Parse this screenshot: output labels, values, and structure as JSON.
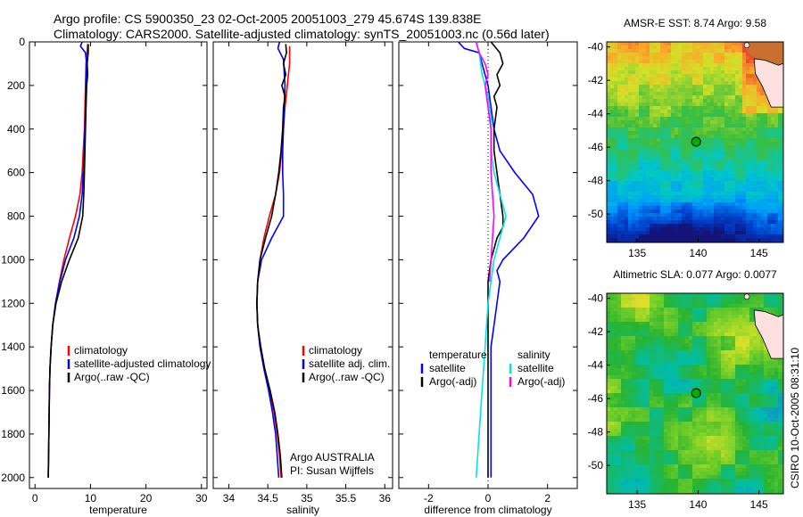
{
  "header": {
    "title_line1": "Argo profile: CS 5900350_23 02-Oct-2005 20051003_279 45.674S 139.838E",
    "title_line2": "Climatology: CARS2000. Satellite-adjusted climatology: synTS_20051003.nc (0.56d later)"
  },
  "stamp": "CSIRO 10-Oct-2005 08:31:10",
  "colors": {
    "climatology": "#ff0000",
    "satellite": "#0000ff",
    "argo": "#000000",
    "satellite_diff_salinity": "#00e5e5",
    "argo_adj_salinity": "#ff00ff",
    "marker_fill": "#00b000"
  },
  "chart_data": [
    {
      "type": "line",
      "id": "temperature",
      "xlabel": "temperature",
      "ylabel": "",
      "xlim": [
        -1,
        31
      ],
      "ylim": [
        2050,
        0
      ],
      "xticks": [
        0,
        10,
        20,
        30
      ],
      "yticks": [
        0,
        200,
        400,
        600,
        800,
        1000,
        1200,
        1400,
        1600,
        1800,
        2000
      ],
      "legend": {
        "placement": "lower-right",
        "entries": [
          "climatology",
          "satellite-adjusted climatology",
          "Argo(..raw -QC)"
        ]
      },
      "series": [
        {
          "name": "climatology",
          "color": "climatology",
          "points": [
            [
              9.5,
              10
            ],
            [
              9.2,
              100
            ],
            [
              9.1,
              200
            ],
            [
              9.0,
              300
            ],
            [
              8.9,
              400
            ],
            [
              8.7,
              500
            ],
            [
              8.5,
              600
            ],
            [
              8.1,
              700
            ],
            [
              7.3,
              800
            ],
            [
              6.2,
              900
            ],
            [
              5.2,
              1000
            ],
            [
              4.4,
              1100
            ],
            [
              3.7,
              1200
            ],
            [
              3.2,
              1300
            ],
            [
              2.9,
              1400
            ],
            [
              2.7,
              1500
            ],
            [
              2.6,
              1600
            ],
            [
              2.5,
              1800
            ],
            [
              2.4,
              2000
            ]
          ]
        },
        {
          "name": "satellite-adjusted climatology",
          "color": "satellite",
          "points": [
            [
              8.5,
              0
            ],
            [
              8.2,
              20
            ],
            [
              9.1,
              50
            ],
            [
              9.3,
              100
            ],
            [
              9.2,
              200
            ],
            [
              9.1,
              300
            ],
            [
              9.0,
              400
            ],
            [
              8.9,
              500
            ],
            [
              8.7,
              600
            ],
            [
              8.5,
              700
            ],
            [
              8.0,
              800
            ],
            [
              7.0,
              900
            ],
            [
              5.5,
              1000
            ],
            [
              4.5,
              1100
            ],
            [
              3.7,
              1200
            ],
            [
              3.2,
              1300
            ],
            [
              2.9,
              1400
            ],
            [
              2.7,
              1500
            ],
            [
              2.6,
              1600
            ],
            [
              2.5,
              1800
            ],
            [
              2.4,
              2000
            ]
          ]
        },
        {
          "name": "Argo(..raw -QC)",
          "color": "argo",
          "points": [
            [
              9.6,
              10
            ],
            [
              9.6,
              50
            ],
            [
              9.4,
              100
            ],
            [
              9.5,
              150
            ],
            [
              9.3,
              200
            ],
            [
              9.2,
              300
            ],
            [
              9.1,
              400
            ],
            [
              9.0,
              500
            ],
            [
              8.9,
              600
            ],
            [
              8.8,
              700
            ],
            [
              8.6,
              800
            ],
            [
              7.8,
              900
            ],
            [
              6.2,
              1000
            ],
            [
              4.8,
              1100
            ],
            [
              3.8,
              1200
            ],
            [
              3.2,
              1300
            ],
            [
              2.9,
              1400
            ],
            [
              2.7,
              1500
            ],
            [
              2.6,
              1600
            ],
            [
              2.5,
              1800
            ],
            [
              2.4,
              2000
            ]
          ]
        }
      ]
    },
    {
      "type": "line",
      "id": "salinity",
      "xlabel": "salinity",
      "ylabel": "",
      "xlim": [
        33.8,
        36.1
      ],
      "ylim": [
        2050,
        0
      ],
      "xticks": [
        34,
        34.5,
        35,
        35.5,
        36
      ],
      "yticks": [
        0,
        200,
        400,
        600,
        800,
        1000,
        1200,
        1400,
        1600,
        1800,
        2000
      ],
      "legend": {
        "placement": "lower-right",
        "entries": [
          "climatology",
          "satellite adj. clim.",
          "Argo(..raw -QC)"
        ]
      },
      "annotation": [
        "Argo AUSTRALIA",
        "PI: Susan Wijffels"
      ],
      "series": [
        {
          "name": "climatology",
          "color": "climatology",
          "points": [
            [
              34.78,
              20
            ],
            [
              34.78,
              100
            ],
            [
              34.75,
              200
            ],
            [
              34.72,
              300
            ],
            [
              34.7,
              400
            ],
            [
              34.68,
              500
            ],
            [
              34.65,
              600
            ],
            [
              34.6,
              700
            ],
            [
              34.52,
              800
            ],
            [
              34.45,
              900
            ],
            [
              34.4,
              1000
            ],
            [
              34.37,
              1100
            ],
            [
              34.36,
              1200
            ],
            [
              34.37,
              1300
            ],
            [
              34.4,
              1400
            ],
            [
              34.45,
              1500
            ],
            [
              34.52,
              1600
            ],
            [
              34.58,
              1700
            ],
            [
              34.62,
              1800
            ],
            [
              34.65,
              1900
            ],
            [
              34.67,
              2000
            ]
          ]
        },
        {
          "name": "satellite adj. clim.",
          "color": "satellite",
          "points": [
            [
              34.65,
              0
            ],
            [
              34.63,
              30
            ],
            [
              34.7,
              80
            ],
            [
              34.72,
              200
            ],
            [
              34.71,
              300
            ],
            [
              34.7,
              400
            ],
            [
              34.69,
              500
            ],
            [
              34.69,
              600
            ],
            [
              34.7,
              700
            ],
            [
              34.7,
              800
            ],
            [
              34.55,
              900
            ],
            [
              34.42,
              1000
            ],
            [
              34.37,
              1100
            ],
            [
              34.36,
              1200
            ],
            [
              34.37,
              1300
            ],
            [
              34.4,
              1400
            ],
            [
              34.45,
              1500
            ],
            [
              34.51,
              1600
            ],
            [
              34.56,
              1700
            ],
            [
              34.6,
              1800
            ],
            [
              34.62,
              1900
            ],
            [
              34.64,
              2000
            ]
          ]
        },
        {
          "name": "Argo(..raw -QC)",
          "color": "argo",
          "points": [
            [
              34.73,
              10
            ],
            [
              34.74,
              50
            ],
            [
              34.7,
              100
            ],
            [
              34.73,
              150
            ],
            [
              34.68,
              200
            ],
            [
              34.72,
              250
            ],
            [
              34.7,
              300
            ],
            [
              34.69,
              400
            ],
            [
              34.67,
              500
            ],
            [
              34.64,
              600
            ],
            [
              34.6,
              700
            ],
            [
              34.55,
              800
            ],
            [
              34.47,
              900
            ],
            [
              34.4,
              1000
            ],
            [
              34.37,
              1100
            ],
            [
              34.36,
              1200
            ],
            [
              34.37,
              1300
            ],
            [
              34.41,
              1400
            ],
            [
              34.46,
              1500
            ],
            [
              34.53,
              1600
            ],
            [
              34.59,
              1700
            ],
            [
              34.63,
              1800
            ],
            [
              34.66,
              1900
            ],
            [
              34.68,
              2000
            ]
          ]
        }
      ]
    },
    {
      "type": "line",
      "id": "difference",
      "xlabel": "difference from climatology",
      "ylabel": "",
      "xlim": [
        -3,
        3
      ],
      "ylim": [
        2050,
        0
      ],
      "xticks": [
        -2,
        0,
        2
      ],
      "yticks": [
        0,
        200,
        400,
        600,
        800,
        1000,
        1200,
        1400,
        1600,
        1800,
        2000
      ],
      "legend": {
        "placement": "lower",
        "columns": [
          {
            "heading": "temperature",
            "entries": [
              "satellite",
              "Argo(-adj)"
            ]
          },
          {
            "heading": "salinity",
            "entries": [
              "satellite",
              "Argo(-adj)"
            ]
          }
        ]
      },
      "series": [
        {
          "name": "satellite",
          "group": "temperature",
          "color": "satellite",
          "points": [
            [
              -1.0,
              0
            ],
            [
              -0.8,
              30
            ],
            [
              -0.3,
              50
            ],
            [
              -0.2,
              100
            ],
            [
              0.0,
              200
            ],
            [
              0.1,
              300
            ],
            [
              0.2,
              400
            ],
            [
              0.4,
              500
            ],
            [
              0.9,
              600
            ],
            [
              1.5,
              700
            ],
            [
              1.7,
              800
            ],
            [
              1.2,
              900
            ],
            [
              0.5,
              1000
            ],
            [
              0.3,
              1050
            ],
            [
              0.4,
              1100
            ],
            [
              0.3,
              1200
            ],
            [
              0.2,
              1300
            ],
            [
              0.1,
              1400
            ],
            [
              0.1,
              1600
            ],
            [
              0.1,
              2000
            ]
          ]
        },
        {
          "name": "Argo(-adj)",
          "group": "temperature",
          "color": "argo",
          "points": [
            [
              0.1,
              0
            ],
            [
              0.4,
              50
            ],
            [
              0.5,
              100
            ],
            [
              0.3,
              150
            ],
            [
              0.4,
              200
            ],
            [
              0.2,
              250
            ],
            [
              0.3,
              300
            ],
            [
              0.2,
              400
            ],
            [
              0.2,
              500
            ],
            [
              0.3,
              600
            ],
            [
              0.4,
              700
            ],
            [
              0.5,
              800
            ],
            [
              0.5,
              850
            ],
            [
              0.3,
              900
            ],
            [
              0.2,
              950
            ],
            [
              0.1,
              1000
            ],
            [
              0.0,
              1100
            ],
            [
              0.0,
              1300
            ],
            [
              0.0,
              1500
            ],
            [
              0.0,
              2000
            ]
          ]
        },
        {
          "name": "satellite",
          "group": "salinity",
          "color": "satellite_diff_salinity",
          "points": [
            [
              -0.4,
              0
            ],
            [
              -0.3,
              50
            ],
            [
              -0.2,
              150
            ],
            [
              0.0,
              250
            ],
            [
              0.1,
              350
            ],
            [
              0.1,
              500
            ],
            [
              0.2,
              600
            ],
            [
              0.4,
              700
            ],
            [
              0.6,
              800
            ],
            [
              0.4,
              900
            ],
            [
              0.2,
              1000
            ],
            [
              0.1,
              1100
            ],
            [
              0.0,
              1200
            ],
            [
              -0.1,
              1400
            ],
            [
              -0.2,
              1600
            ],
            [
              -0.3,
              1800
            ],
            [
              -0.4,
              2000
            ]
          ]
        },
        {
          "name": "Argo(-adj)",
          "group": "salinity",
          "color": "argo_adj_salinity",
          "points": [
            [
              -0.4,
              0
            ],
            [
              -0.3,
              50
            ],
            [
              -0.1,
              100
            ],
            [
              0.0,
              150
            ],
            [
              -0.1,
              200
            ],
            [
              0.0,
              300
            ],
            [
              0.1,
              400
            ],
            [
              0.1,
              500
            ],
            [
              0.1,
              600
            ],
            [
              0.15,
              700
            ],
            [
              0.2,
              800
            ],
            [
              0.15,
              900
            ],
            [
              0.1,
              1000
            ],
            [
              0.05,
              1100
            ]
          ]
        }
      ]
    }
  ],
  "maps": [
    {
      "id": "sst",
      "title": "AMSR-E SST: 8.74 Argo: 9.58",
      "xlim": [
        132.5,
        147
      ],
      "ylim": [
        -51.7,
        -39.7
      ],
      "xticks": [
        135,
        140,
        145
      ],
      "yticks": [
        -40,
        -42,
        -44,
        -46,
        -48,
        -50
      ],
      "marker": {
        "lon": 139.838,
        "lat": -45.674
      }
    },
    {
      "id": "sla",
      "title": "Altimetric SLA: 0.077 Argo: 0.0077",
      "xlim": [
        132.5,
        147
      ],
      "ylim": [
        -51.7,
        -39.7
      ],
      "xticks": [
        135,
        140,
        145
      ],
      "yticks": [
        -40,
        -42,
        -44,
        -46,
        -48,
        -50
      ],
      "marker": {
        "lon": 139.838,
        "lat": -45.674
      }
    }
  ]
}
